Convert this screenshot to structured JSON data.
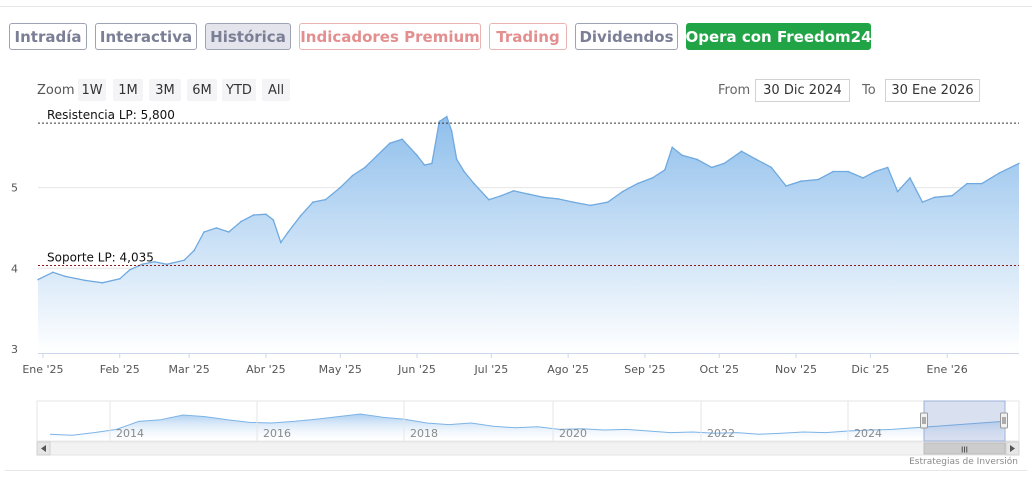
{
  "tabs": [
    {
      "label": "Intradía",
      "name": "tab-intradia",
      "style": "normal"
    },
    {
      "label": "Interactiva",
      "name": "tab-interactiva",
      "style": "normal"
    },
    {
      "label": "Histórica",
      "name": "tab-historica",
      "style": "active"
    },
    {
      "label": "Indicadores Premium",
      "name": "tab-indicadores-premium",
      "style": "premium"
    },
    {
      "label": "Trading",
      "name": "tab-trading",
      "style": "premium"
    },
    {
      "label": "Dividendos",
      "name": "tab-dividendos",
      "style": "normal"
    },
    {
      "label": "Opera con Freedom24",
      "name": "freedom24-button",
      "style": "cta"
    }
  ],
  "zoom": {
    "label": "Zoom",
    "buttons": [
      "1W",
      "1M",
      "3M",
      "6M",
      "YTD",
      "All"
    ]
  },
  "range": {
    "from_label": "From",
    "from_value": "30 Dic 2024",
    "to_label": "To",
    "to_value": "30 Ene 2026"
  },
  "colors": {
    "accent_line": "#6fa9df",
    "area_top": "#8fbfec",
    "area_bottom": "#ffffff",
    "support_line": "#8b1a1a",
    "resistance_line": "#333333",
    "cta": "#20a445"
  },
  "chart_data": {
    "type": "area",
    "y_ticks": [
      3,
      4,
      5
    ],
    "ylim": [
      2.95,
      5.9
    ],
    "x_ticks": [
      "Ene '25",
      "Feb '25",
      "Mar '25",
      "Abr '25",
      "May '25",
      "Jun '25",
      "Jul '25",
      "Ago '25",
      "Sep '25",
      "Oct '25",
      "Nov '25",
      "Dic '25",
      "Ene '26"
    ],
    "x_tick_dates": [
      "2025-01-01",
      "2025-02-01",
      "2025-03-01",
      "2025-04-01",
      "2025-05-01",
      "2025-06-01",
      "2025-07-01",
      "2025-08-01",
      "2025-09-01",
      "2025-10-01",
      "2025-11-01",
      "2025-12-01",
      "2026-01-01"
    ],
    "xlim": [
      "2024-12-30",
      "2026-01-30"
    ],
    "grid": true,
    "annotations": [
      {
        "label": "Resistencia LP: 5,800",
        "value": 5.8,
        "kind": "resistance"
      },
      {
        "label": "Soporte LP: 4,035",
        "value": 4.035,
        "kind": "support"
      }
    ],
    "series": [
      {
        "x": [
          "2024-12-30",
          "2025-01-05",
          "2025-01-10",
          "2025-01-18",
          "2025-01-25",
          "2025-02-01",
          "2025-02-05",
          "2025-02-10",
          "2025-02-15",
          "2025-02-20",
          "2025-02-27",
          "2025-03-03",
          "2025-03-07",
          "2025-03-12",
          "2025-03-17",
          "2025-03-22",
          "2025-03-27",
          "2025-04-01",
          "2025-04-04",
          "2025-04-07",
          "2025-04-10",
          "2025-04-15",
          "2025-04-20",
          "2025-04-25",
          "2025-05-01",
          "2025-05-06",
          "2025-05-11",
          "2025-05-16",
          "2025-05-21",
          "2025-05-26",
          "2025-06-01",
          "2025-06-04",
          "2025-06-07",
          "2025-06-10",
          "2025-06-13",
          "2025-06-15",
          "2025-06-17",
          "2025-06-20",
          "2025-06-24",
          "2025-06-30",
          "2025-07-05",
          "2025-07-10",
          "2025-07-16",
          "2025-07-22",
          "2025-07-28",
          "2025-08-03",
          "2025-08-10",
          "2025-08-17",
          "2025-08-23",
          "2025-08-29",
          "2025-09-04",
          "2025-09-09",
          "2025-09-12",
          "2025-09-16",
          "2025-09-22",
          "2025-09-28",
          "2025-10-03",
          "2025-10-10",
          "2025-10-16",
          "2025-10-22",
          "2025-10-28",
          "2025-11-03",
          "2025-11-10",
          "2025-11-16",
          "2025-11-22",
          "2025-11-28",
          "2025-12-03",
          "2025-12-08",
          "2025-12-12",
          "2025-12-17",
          "2025-12-22",
          "2025-12-27",
          "2026-01-03",
          "2026-01-09",
          "2026-01-15",
          "2026-01-22",
          "2026-01-30"
        ],
        "y": [
          3.86,
          3.95,
          3.9,
          3.85,
          3.82,
          3.87,
          3.98,
          4.05,
          4.08,
          4.05,
          4.1,
          4.22,
          4.45,
          4.5,
          4.45,
          4.58,
          4.66,
          4.67,
          4.6,
          4.32,
          4.45,
          4.65,
          4.82,
          4.85,
          5.0,
          5.15,
          5.25,
          5.4,
          5.55,
          5.6,
          5.4,
          5.28,
          5.3,
          5.82,
          5.88,
          5.7,
          5.35,
          5.2,
          5.05,
          4.85,
          4.9,
          4.96,
          4.92,
          4.88,
          4.86,
          4.82,
          4.78,
          4.82,
          4.95,
          5.05,
          5.12,
          5.22,
          5.5,
          5.4,
          5.35,
          5.25,
          5.3,
          5.45,
          5.35,
          5.25,
          5.02,
          5.08,
          5.1,
          5.2,
          5.2,
          5.12,
          5.2,
          5.25,
          4.95,
          5.12,
          4.82,
          4.88,
          4.9,
          5.05,
          5.05,
          5.18,
          5.3
        ]
      }
    ]
  },
  "navigator": {
    "year_labels": [
      "2014",
      "2016",
      "2018",
      "2020",
      "2022",
      "2024"
    ],
    "scrollbar_grip": "III"
  },
  "credit": "Estrategias de Inversión"
}
